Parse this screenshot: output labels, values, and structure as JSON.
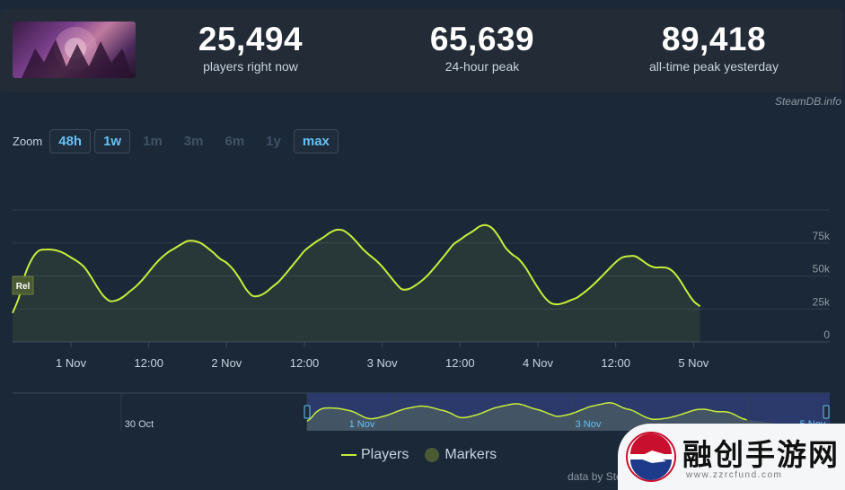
{
  "stats": [
    {
      "value": "25,494",
      "label": "players right now"
    },
    {
      "value": "65,639",
      "label": "24-hour peak"
    },
    {
      "value": "89,418",
      "label": "all-time peak yesterday"
    }
  ],
  "attribution": "SteamDB.info",
  "zoom": {
    "label": "Zoom",
    "options": [
      {
        "label": "48h",
        "active": true
      },
      {
        "label": "1w",
        "active": true
      },
      {
        "label": "1m",
        "active": false
      },
      {
        "label": "3m",
        "active": false
      },
      {
        "label": "6m",
        "active": false
      },
      {
        "label": "1y",
        "active": false
      },
      {
        "label": "max",
        "active": true
      }
    ]
  },
  "legend": {
    "players": "Players",
    "markers": "Markers"
  },
  "data_by": "data by Ste",
  "watermark": {
    "text": "融创手游网",
    "sub": "www.zzrcfund.com"
  },
  "colors": {
    "line": "#c6ee3a",
    "accent": "#66c0f4",
    "grid": "#2f3d4c",
    "navigator_bg": "#2c3a6b"
  },
  "chart_data": {
    "type": "line",
    "series": [
      {
        "name": "Players"
      }
    ],
    "yticks": [
      "0",
      "25k",
      "50k",
      "75k"
    ],
    "ylim": [
      0,
      100000
    ],
    "xticks": [
      "1 Nov",
      "12:00",
      "2 Nov",
      "12:00",
      "3 Nov",
      "12:00",
      "4 Nov",
      "12:00",
      "5 Nov"
    ],
    "x_hours_range": [
      -9,
      117
    ],
    "points": [
      [
        -9,
        22000
      ],
      [
        -8,
        34000
      ],
      [
        -7,
        52000
      ],
      [
        -6,
        63000
      ],
      [
        -5,
        69000
      ],
      [
        -4,
        70000
      ],
      [
        -3,
        70000
      ],
      [
        -2,
        69000
      ],
      [
        -1,
        67000
      ],
      [
        0,
        64000
      ],
      [
        1,
        61000
      ],
      [
        2,
        57000
      ],
      [
        3,
        50000
      ],
      [
        4,
        42000
      ],
      [
        5,
        35000
      ],
      [
        6,
        31000
      ],
      [
        7,
        31500
      ],
      [
        8,
        34000
      ],
      [
        9,
        38000
      ],
      [
        10,
        42000
      ],
      [
        11,
        47000
      ],
      [
        12,
        53000
      ],
      [
        13,
        59000
      ],
      [
        14,
        64000
      ],
      [
        15,
        68000
      ],
      [
        16,
        71000
      ],
      [
        17,
        74000
      ],
      [
        18,
        76500
      ],
      [
        19,
        76500
      ],
      [
        20,
        75000
      ],
      [
        21,
        71500
      ],
      [
        22,
        67500
      ],
      [
        23,
        63000
      ],
      [
        24,
        60000
      ],
      [
        25,
        55000
      ],
      [
        26,
        48000
      ],
      [
        27,
        40000
      ],
      [
        28,
        35000
      ],
      [
        29,
        35000
      ],
      [
        30,
        37500
      ],
      [
        31,
        41500
      ],
      [
        32,
        45500
      ],
      [
        33,
        51000
      ],
      [
        34,
        57000
      ],
      [
        35,
        63000
      ],
      [
        36,
        69000
      ],
      [
        37,
        73000
      ],
      [
        38,
        76500
      ],
      [
        39,
        79500
      ],
      [
        40,
        83000
      ],
      [
        41,
        85000
      ],
      [
        42,
        84500
      ],
      [
        43,
        81000
      ],
      [
        44,
        76000
      ],
      [
        45,
        70500
      ],
      [
        46,
        66000
      ],
      [
        47,
        62000
      ],
      [
        48,
        57000
      ],
      [
        49,
        51000
      ],
      [
        50,
        45000
      ],
      [
        51,
        40000
      ],
      [
        52,
        40000
      ],
      [
        53,
        42500
      ],
      [
        54,
        46000
      ],
      [
        55,
        50500
      ],
      [
        56,
        56000
      ],
      [
        57,
        62000
      ],
      [
        58,
        68000
      ],
      [
        59,
        74000
      ],
      [
        60,
        77500
      ],
      [
        61,
        81000
      ],
      [
        62,
        84000
      ],
      [
        63,
        87500
      ],
      [
        64,
        88500
      ],
      [
        65,
        86000
      ],
      [
        66,
        79500
      ],
      [
        67,
        71500
      ],
      [
        68,
        66500
      ],
      [
        69,
        63000
      ],
      [
        70,
        57000
      ],
      [
        71,
        49000
      ],
      [
        72,
        41000
      ],
      [
        73,
        34000
      ],
      [
        74,
        29500
      ],
      [
        75,
        28500
      ],
      [
        76,
        29500
      ],
      [
        77,
        31500
      ],
      [
        78,
        33500
      ],
      [
        79,
        37000
      ],
      [
        80,
        41000
      ],
      [
        81,
        45500
      ],
      [
        82,
        50500
      ],
      [
        83,
        55500
      ],
      [
        84,
        60500
      ],
      [
        85,
        64000
      ],
      [
        86,
        65000
      ],
      [
        87,
        65000
      ],
      [
        88,
        62000
      ],
      [
        89,
        58500
      ],
      [
        90,
        56500
      ],
      [
        91,
        56500
      ],
      [
        92,
        56000
      ],
      [
        93,
        52500
      ],
      [
        94,
        46000
      ],
      [
        95,
        38000
      ],
      [
        96,
        31000
      ],
      [
        97,
        27000
      ]
    ],
    "release_flag": "Rel",
    "navigator": {
      "labels": [
        "30 Oct",
        "1 Nov",
        "3 Nov",
        "5 Nov"
      ]
    }
  }
}
